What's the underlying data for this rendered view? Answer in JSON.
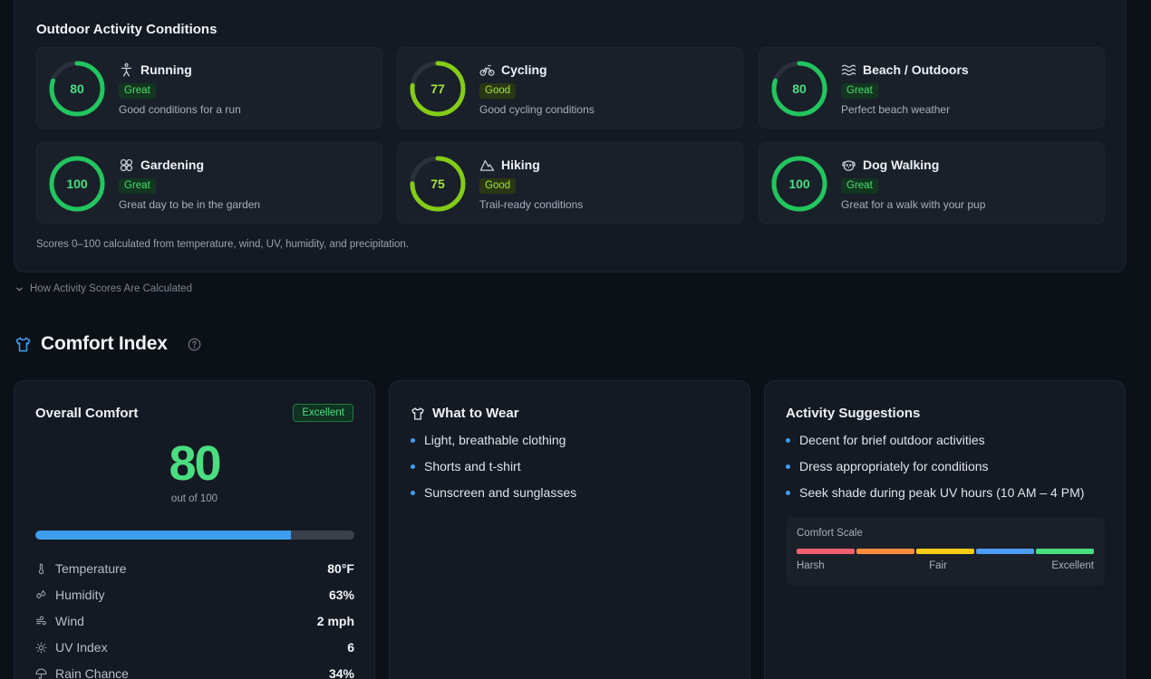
{
  "activity": {
    "title": "Outdoor Activity Conditions",
    "footnote": "Scores 0–100 calculated from temperature, wind, UV, humidity, and precipitation.",
    "how_link": "How Activity Scores Are Calculated",
    "items": [
      {
        "name": "Running",
        "score": 80,
        "badge": "Great",
        "desc": "Good conditions for a run",
        "icon": "running-icon",
        "color": "#22c55e"
      },
      {
        "name": "Cycling",
        "score": 77,
        "badge": "Good",
        "desc": "Good cycling conditions",
        "icon": "bicycle-icon",
        "color": "#84cc16"
      },
      {
        "name": "Beach / Outdoors",
        "score": 80,
        "badge": "Great",
        "desc": "Perfect beach weather",
        "icon": "waves-icon",
        "color": "#22c55e"
      },
      {
        "name": "Gardening",
        "score": 100,
        "badge": "Great",
        "desc": "Great day to be in the garden",
        "icon": "flower-icon",
        "color": "#22c55e"
      },
      {
        "name": "Hiking",
        "score": 75,
        "badge": "Good",
        "desc": "Trail-ready conditions",
        "icon": "mountain-icon",
        "color": "#84cc16"
      },
      {
        "name": "Dog Walking",
        "score": 100,
        "badge": "Great",
        "desc": "Great for a walk with your pup",
        "icon": "dog-icon",
        "color": "#22c55e"
      }
    ]
  },
  "comfort": {
    "title": "Comfort Index",
    "overall": {
      "title": "Overall Comfort",
      "badge": "Excellent",
      "score": "80",
      "out_of": "out of 100",
      "progress_fraction": 0.8,
      "metrics": [
        {
          "label": "Temperature",
          "value": "80°F",
          "icon": "thermometer-icon"
        },
        {
          "label": "Humidity",
          "value": "63%",
          "icon": "droplets-icon"
        },
        {
          "label": "Wind",
          "value": "2 mph",
          "icon": "wind-icon"
        },
        {
          "label": "UV Index",
          "value": "6",
          "icon": "sun-icon"
        },
        {
          "label": "Rain Chance",
          "value": "34%",
          "icon": "umbrella-icon"
        }
      ]
    },
    "wear": {
      "title": "What to Wear",
      "items": [
        "Light, breathable clothing",
        "Shorts and t-shirt",
        "Sunscreen and sunglasses"
      ]
    },
    "suggestions": {
      "title": "Activity Suggestions",
      "items": [
        "Decent for brief outdoor activities",
        "Dress appropriately for conditions",
        "Seek shade during peak UV hours (10 AM – 4 PM)"
      ]
    },
    "scale": {
      "label": "Comfort Scale",
      "colors": [
        "#f0616d",
        "#fb8c3c",
        "#facc15",
        "#4f9cf5",
        "#4ade80"
      ],
      "ticks": [
        "Harsh",
        "Fair",
        "Excellent"
      ]
    }
  },
  "colors": {
    "accent": "#3d9ef0",
    "great": "#22c55e",
    "good": "#84cc16"
  }
}
